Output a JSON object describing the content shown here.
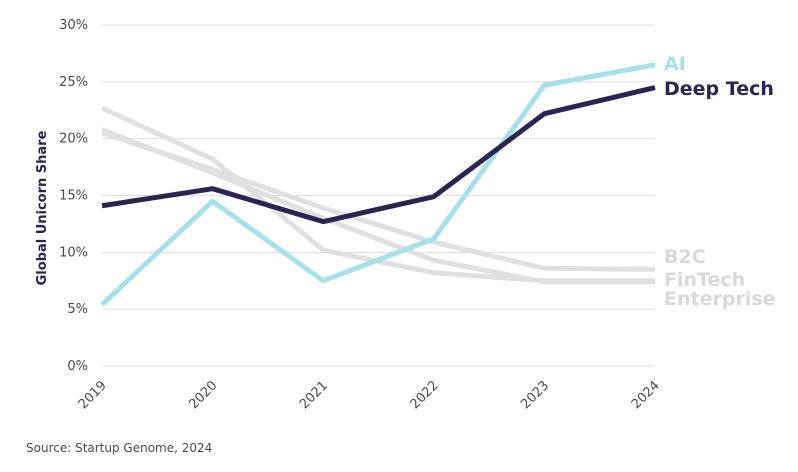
{
  "chart_data": {
    "type": "line",
    "ylabel": "Global Unicorn Share",
    "ylim": [
      0,
      30
    ],
    "yticks": [
      "0%",
      "5%",
      "10%",
      "15%",
      "20%",
      "25%",
      "30%"
    ],
    "x": [
      "2019",
      "2020",
      "2021",
      "2022",
      "2023",
      "2024"
    ],
    "grid": true,
    "series": [
      {
        "name": "Enterprise",
        "color": "#e0e0e0",
        "values": [
          20.8,
          17.0,
          13.0,
          9.3,
          7.4,
          7.4
        ]
      },
      {
        "name": "FinTech",
        "color": "#e0e0e0",
        "values": [
          20.5,
          17.3,
          13.9,
          10.9,
          8.6,
          8.5
        ]
      },
      {
        "name": "B2C",
        "color": "#e0e0e0",
        "values": [
          22.7,
          18.2,
          10.2,
          8.2,
          7.5,
          7.5
        ]
      },
      {
        "name": "AI",
        "color": "#a6e0e8",
        "values": [
          5.4,
          14.5,
          7.5,
          11.2,
          24.7,
          26.5
        ]
      },
      {
        "name": "Deep Tech",
        "color": "#2b2452",
        "values": [
          14.1,
          15.6,
          12.7,
          14.9,
          22.2,
          24.5
        ]
      }
    ]
  },
  "source": "Source: Startup Genome, 2024"
}
